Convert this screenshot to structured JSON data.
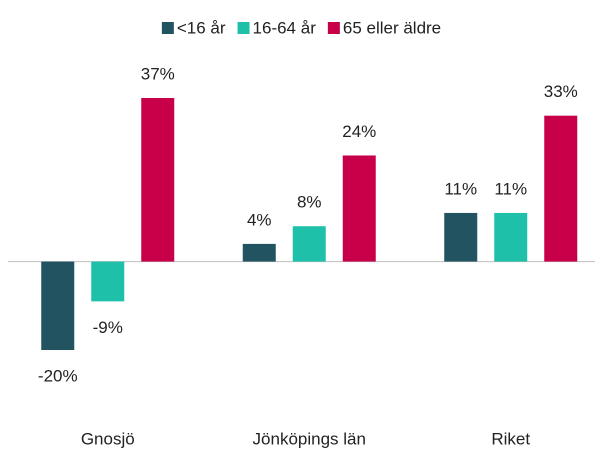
{
  "chart_data": {
    "type": "bar",
    "categories": [
      "Gnosjö",
      "Jönköpings län",
      "Riket"
    ],
    "series": [
      {
        "name": "<16 år",
        "color": "#215460",
        "values": [
          -20,
          4,
          11
        ],
        "value_labels": [
          "-20%",
          "4%",
          "11%"
        ]
      },
      {
        "name": "16-64 år",
        "color": "#1fc0aa",
        "values": [
          -9,
          8,
          11
        ],
        "value_labels": [
          "-9%",
          "8%",
          "11%"
        ]
      },
      {
        "name": "65 eller äldre",
        "color": "#c8004a",
        "values": [
          37,
          24,
          33
        ],
        "value_labels": [
          "37%",
          "24%",
          "33%"
        ]
      }
    ],
    "legend": "top"
  }
}
